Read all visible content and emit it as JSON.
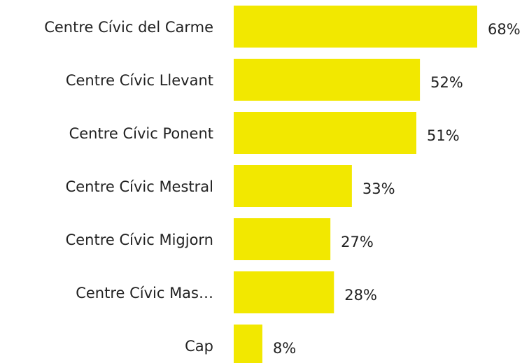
{
  "chart_data": {
    "type": "barh",
    "categories": [
      "Centre Cívic del Carme",
      "Centre Cívic Llevant",
      "Centre Cívic Ponent",
      "Centre Cívic Mestral",
      "Centre Cívic Migjorn",
      "Centre Cívic Mas…",
      "Cap"
    ],
    "values": [
      68,
      52,
      51,
      33,
      27,
      28,
      8
    ],
    "value_labels": [
      "68%",
      "52%",
      "51%",
      "33%",
      "27%",
      "28%",
      "8%"
    ],
    "color": "#f2e800"
  }
}
